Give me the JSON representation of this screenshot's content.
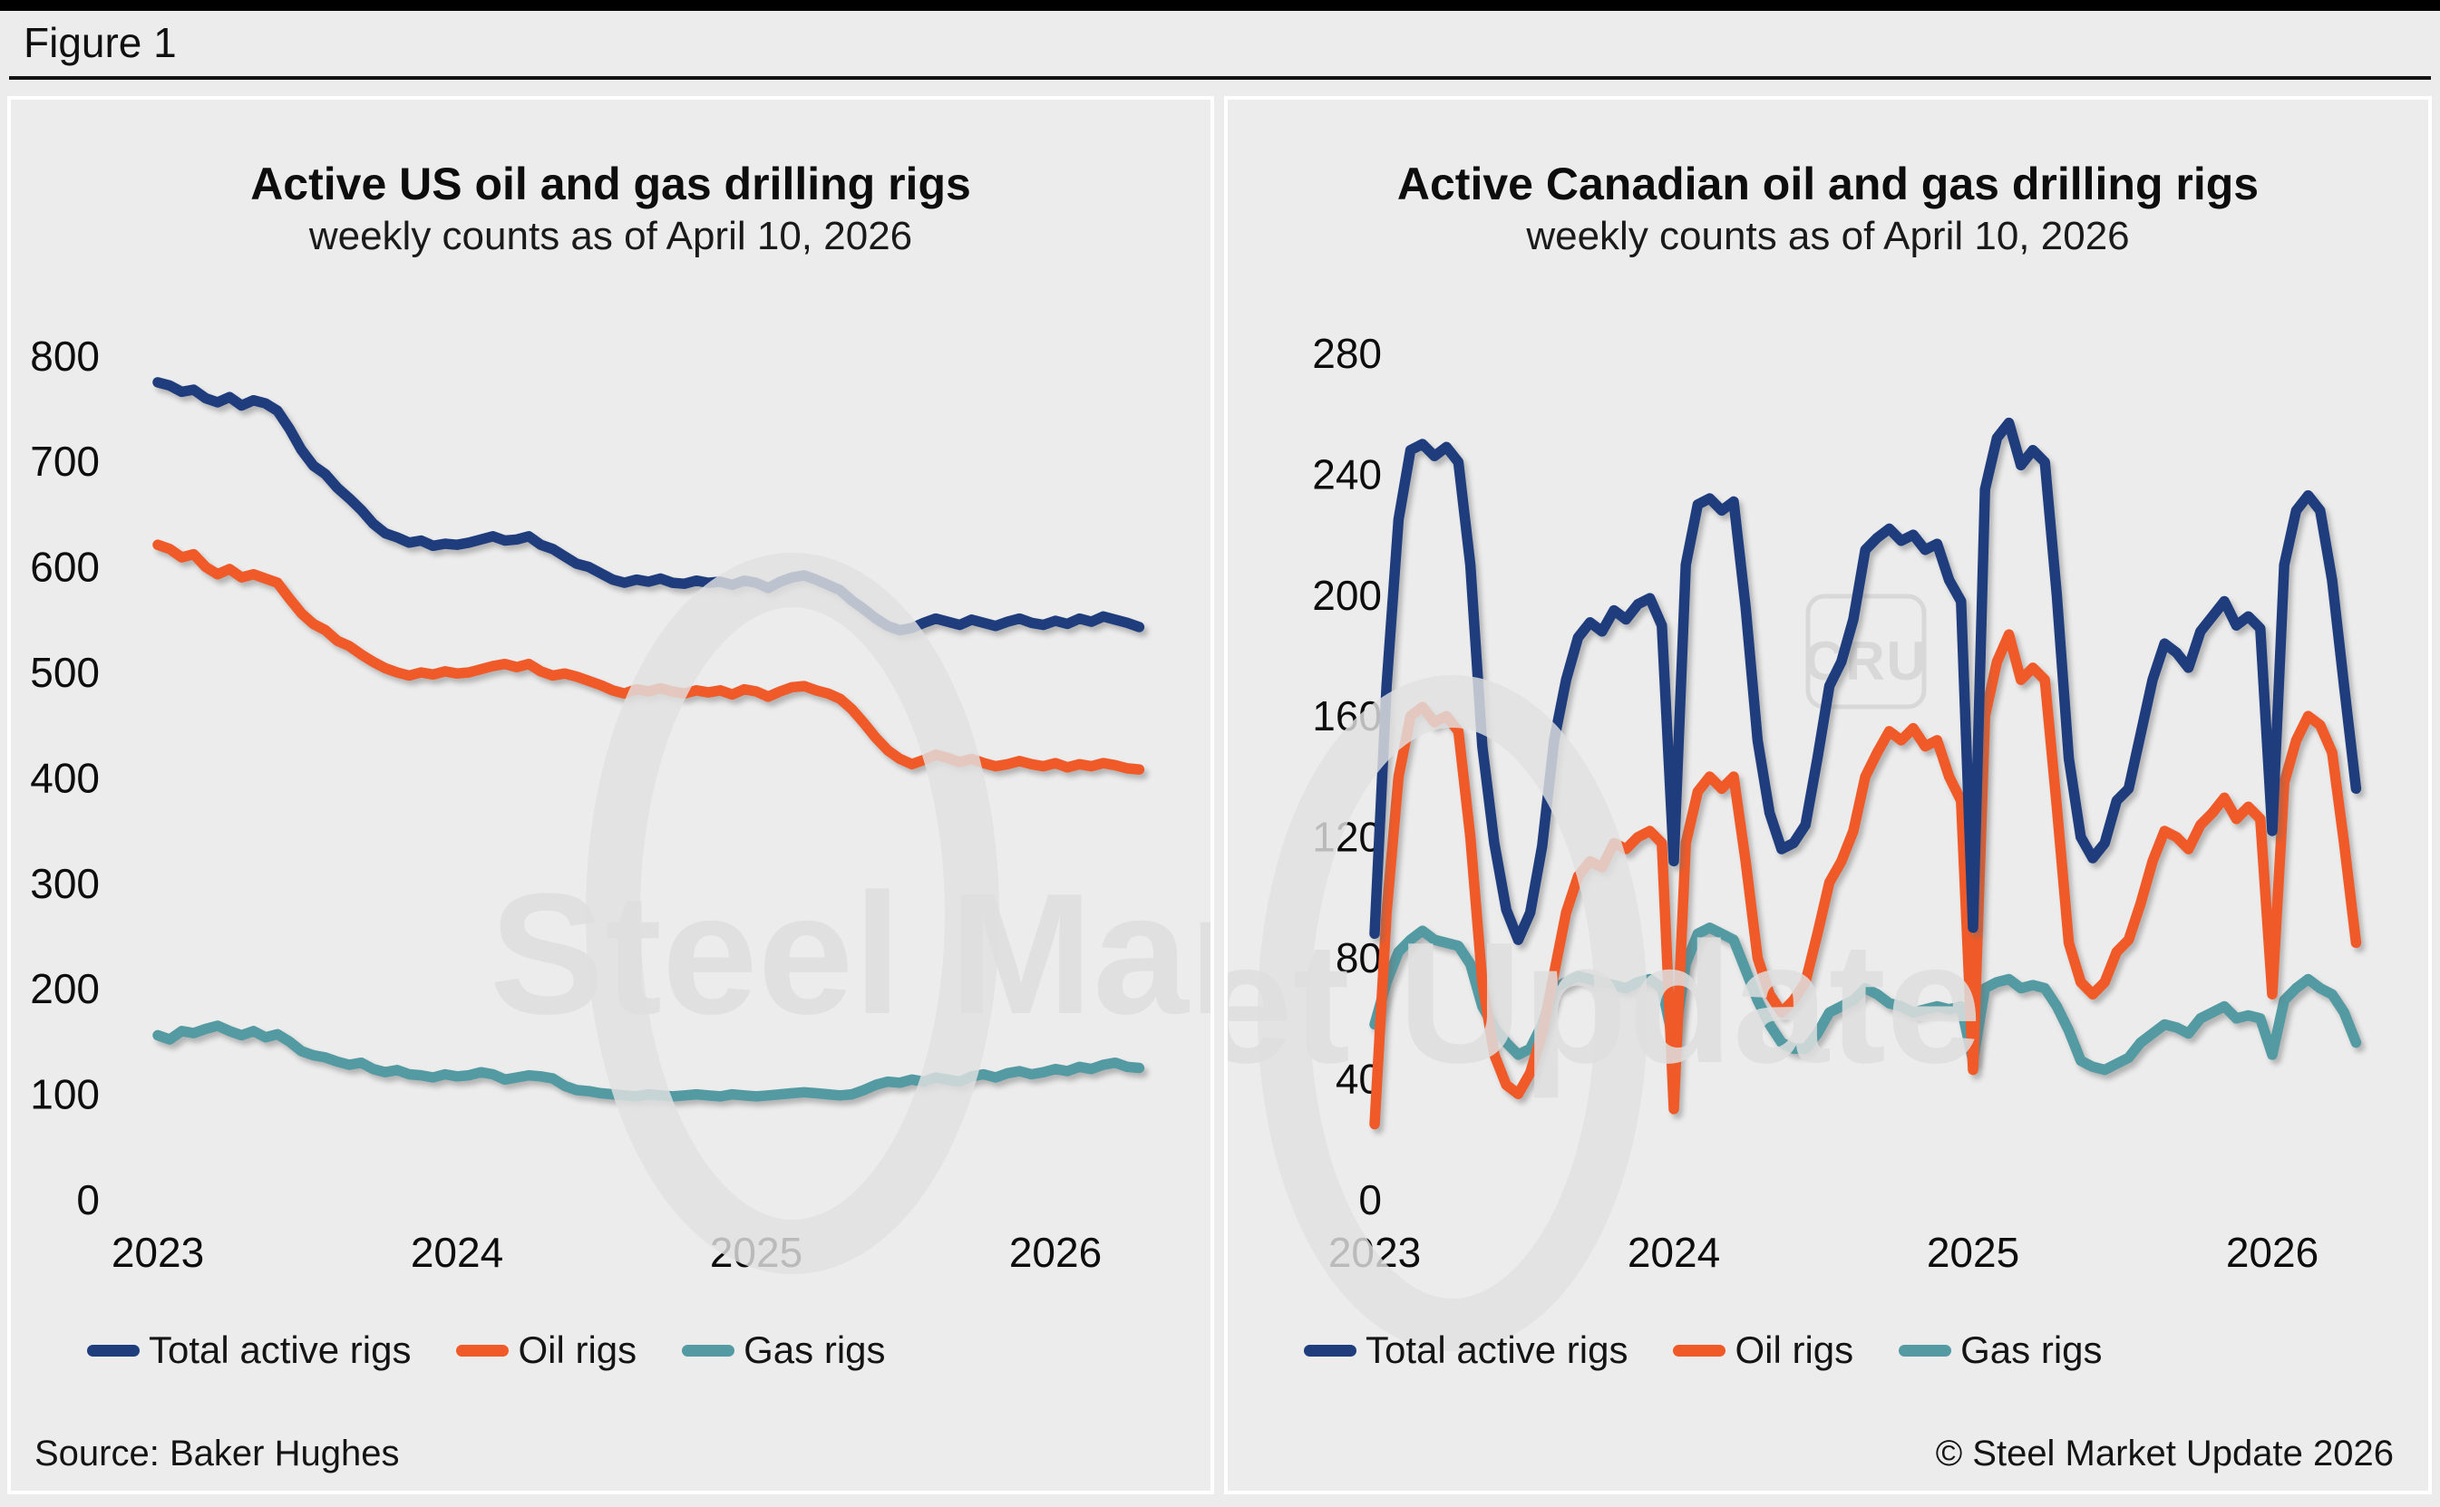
{
  "page": {
    "figure_label": "Figure 1"
  },
  "footer": {
    "source": "Source: Baker Hughes",
    "copyright": "© Steel Market Update 2026"
  },
  "watermarks": {
    "left_text": "Steel Market",
    "right_text": "et Update",
    "cru_badge": "CRU"
  },
  "colors": {
    "total": "#1f3d7d",
    "oil": "#f05a28",
    "gas": "#549aa2",
    "background": "#ececec",
    "panel_border": "#ffffff",
    "text": "#111111",
    "watermark": "#e1e1e1"
  },
  "chart_data": [
    {
      "type": "line",
      "title": "Active US oil and gas drilling rigs",
      "subtitle": "weekly counts as of April 10, 2026",
      "x_start_year": 2023,
      "x_step_years": 0.04,
      "x_tick_labels": [
        "2023",
        "2024",
        "2025",
        "2026"
      ],
      "y_ticks": [
        0,
        100,
        200,
        300,
        400,
        500,
        600,
        700,
        800
      ],
      "ylim": [
        0,
        800
      ],
      "grid": false,
      "legend_position": "bottom",
      "series": [
        {
          "name": "Total active rigs",
          "color_key": "total",
          "values": [
            775,
            772,
            766,
            768,
            760,
            756,
            761,
            753,
            758,
            755,
            748,
            731,
            711,
            696,
            688,
            675,
            665,
            654,
            641,
            632,
            628,
            623,
            625,
            620,
            622,
            621,
            623,
            626,
            629,
            625,
            626,
            629,
            621,
            617,
            610,
            603,
            600,
            594,
            588,
            585,
            588,
            586,
            589,
            585,
            584,
            587,
            585,
            586,
            583,
            587,
            585,
            580,
            586,
            590,
            592,
            588,
            583,
            578,
            568,
            560,
            551,
            544,
            540,
            542,
            547,
            551,
            548,
            545,
            550,
            547,
            544,
            548,
            551,
            547,
            545,
            549,
            546,
            551,
            548,
            553,
            550,
            547,
            543
          ]
        },
        {
          "name": "Oil rigs",
          "color_key": "oil",
          "values": [
            621,
            617,
            609,
            612,
            600,
            593,
            598,
            590,
            593,
            589,
            585,
            570,
            556,
            546,
            540,
            530,
            525,
            517,
            510,
            504,
            500,
            497,
            500,
            498,
            501,
            499,
            500,
            503,
            506,
            508,
            505,
            508,
            501,
            497,
            499,
            496,
            492,
            488,
            483,
            480,
            484,
            482,
            485,
            482,
            480,
            483,
            481,
            483,
            479,
            484,
            482,
            477,
            482,
            486,
            487,
            483,
            480,
            475,
            465,
            452,
            438,
            426,
            418,
            413,
            417,
            422,
            419,
            415,
            418,
            414,
            411,
            413,
            416,
            413,
            411,
            414,
            410,
            413,
            411,
            414,
            412,
            409,
            408
          ]
        },
        {
          "name": "Gas rigs",
          "color_key": "gas",
          "values": [
            156,
            152,
            160,
            158,
            162,
            165,
            160,
            156,
            160,
            154,
            157,
            150,
            141,
            137,
            135,
            131,
            128,
            130,
            124,
            121,
            123,
            119,
            118,
            116,
            119,
            117,
            118,
            121,
            119,
            114,
            116,
            118,
            117,
            115,
            108,
            104,
            103,
            101,
            100,
            99,
            98,
            100,
            99,
            98,
            99,
            100,
            99,
            98,
            100,
            99,
            98,
            99,
            100,
            101,
            102,
            101,
            100,
            99,
            100,
            104,
            109,
            112,
            111,
            114,
            112,
            116,
            114,
            112,
            117,
            119,
            116,
            120,
            122,
            119,
            121,
            124,
            122,
            126,
            124,
            128,
            130,
            126,
            125
          ]
        }
      ]
    },
    {
      "type": "line",
      "title": "Active Canadian oil and gas drilling rigs",
      "subtitle": "weekly counts as of April 10, 2026",
      "x_start_year": 2023,
      "x_step_years": 0.04,
      "x_tick_labels": [
        "2023",
        "2024",
        "2025",
        "2026"
      ],
      "y_ticks": [
        0,
        40,
        80,
        120,
        160,
        200,
        240,
        280
      ],
      "ylim": [
        0,
        280
      ],
      "grid": false,
      "legend_position": "bottom",
      "series": [
        {
          "name": "Total active rigs",
          "color_key": "total",
          "values": [
            88,
            170,
            225,
            248,
            250,
            246,
            249,
            244,
            210,
            150,
            118,
            96,
            86,
            95,
            117,
            152,
            172,
            186,
            191,
            188,
            195,
            192,
            197,
            199,
            190,
            112,
            210,
            230,
            232,
            228,
            231,
            196,
            152,
            128,
            116,
            118,
            124,
            146,
            170,
            178,
            192,
            215,
            219,
            222,
            218,
            220,
            215,
            217,
            205,
            198,
            90,
            235,
            252,
            257,
            243,
            248,
            244,
            200,
            146,
            120,
            113,
            118,
            132,
            136,
            154,
            172,
            184,
            181,
            176,
            188,
            193,
            198,
            190,
            193,
            189,
            122,
            210,
            228,
            233,
            228,
            205,
            170,
            136
          ]
        },
        {
          "name": "Oil rigs",
          "color_key": "oil",
          "values": [
            25,
            95,
            140,
            160,
            163,
            158,
            160,
            155,
            120,
            72,
            48,
            38,
            35,
            42,
            55,
            75,
            95,
            107,
            112,
            110,
            118,
            116,
            120,
            122,
            118,
            30,
            118,
            135,
            140,
            136,
            140,
            112,
            80,
            68,
            62,
            66,
            72,
            88,
            105,
            112,
            122,
            140,
            148,
            155,
            152,
            156,
            150,
            152,
            140,
            132,
            43,
            160,
            178,
            187,
            172,
            176,
            172,
            130,
            85,
            72,
            68,
            72,
            82,
            86,
            98,
            112,
            122,
            120,
            116,
            124,
            128,
            133,
            126,
            130,
            126,
            68,
            138,
            152,
            160,
            157,
            148,
            118,
            85
          ]
        },
        {
          "name": "Gas rigs",
          "color_key": "gas",
          "values": [
            58,
            72,
            82,
            86,
            89,
            86,
            85,
            84,
            78,
            64,
            57,
            52,
            48,
            50,
            58,
            70,
            72,
            74,
            73,
            72,
            71,
            70,
            72,
            73,
            70,
            52,
            78,
            88,
            90,
            88,
            86,
            76,
            66,
            58,
            52,
            50,
            50,
            55,
            62,
            64,
            66,
            70,
            68,
            65,
            64,
            62,
            63,
            64,
            63,
            64,
            46,
            70,
            72,
            73,
            70,
            71,
            70,
            64,
            56,
            46,
            44,
            43,
            45,
            47,
            52,
            55,
            58,
            57,
            55,
            60,
            62,
            64,
            60,
            61,
            60,
            48,
            66,
            70,
            73,
            70,
            68,
            62,
            52
          ]
        }
      ]
    }
  ]
}
